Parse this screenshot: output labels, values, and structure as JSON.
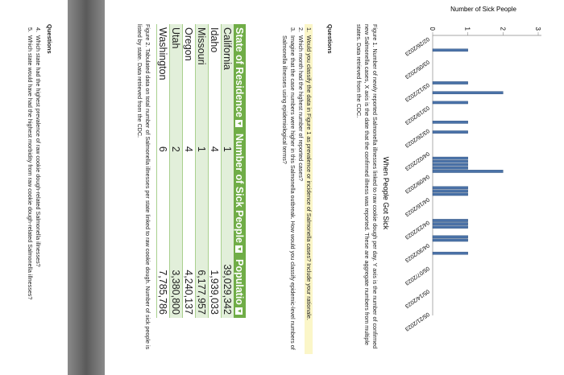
{
  "figure1": {
    "chart_data": {
      "type": "bar",
      "title": "When People Got Sick",
      "y_label": "Number of Sick People",
      "x": [
        "03/02/2023",
        "03/12/2023",
        "03/15/2023",
        "03/18/2023",
        "03/24/2023",
        "03/27/2023",
        "04/04/2023",
        "04/05/2023",
        "04/06/2023",
        "04/07/2023",
        "04/08/2023",
        "04/13/2023",
        "04/14/2023",
        "04/15/2023",
        "04/23/2023",
        "04/24/2023",
        "04/25/2023",
        "04/28/2023",
        "04/29/2023",
        "05/03/2023"
      ],
      "values": [
        1,
        1,
        2,
        1,
        1,
        1,
        1,
        1,
        1,
        1,
        2,
        1,
        1,
        1,
        1,
        1,
        1,
        1,
        1,
        1
      ],
      "color": "#4a72a8",
      "ylim": [
        0,
        3
      ],
      "yticks": [
        0,
        1,
        2,
        3
      ],
      "xticks": [
        "02/26/2023",
        "03/05/2023",
        "03/12/2023",
        "03/19/2023",
        "03/26/2023",
        "04/02/2023",
        "04/09/2023",
        "04/16/2023",
        "04/23/2023",
        "04/30/2023",
        "05/07/2023",
        "05/14/2023",
        "05/21/2023"
      ]
    },
    "caption": "Figure 1. Number of newly reported Salmonella illnesses linked to raw cookie dough per day. Y axis is the number of confirmed new Salmonella cases, X axis is the date that the confirmed illness was reported. These are aggregate numbers from multiple states. Data retrieved from the CDC."
  },
  "questions1": {
    "heading": "Questions",
    "items": [
      {
        "number": "1.",
        "text": "Would you classify the data in Figure 1 as prevalence or incidence of Salmonella cases? Include your rationale."
      },
      {
        "number": "2.",
        "text": "Which month had the highest number of reported cases?"
      },
      {
        "number": "3.",
        "text": "Imagine that the case numbers were higher in this Salmonella outbreak. How would you classify epidemic-level numbers of Salmonella illnesses using epidemiological terms?"
      }
    ]
  },
  "table": {
    "headers": [
      "State of Residence",
      "Number of Sick People",
      "Populatio"
    ],
    "rows": [
      [
        "California",
        "1",
        "39,029,342"
      ],
      [
        "Idaho",
        "4",
        "1,939,033"
      ],
      [
        "Missouri",
        "1",
        "6,177,957"
      ],
      [
        "Oregon",
        "4",
        "4,240,137"
      ],
      [
        "Utah",
        "2",
        "3,380,800"
      ],
      [
        "Washington",
        "6",
        "7,785,786"
      ]
    ]
  },
  "figure2_caption": "Figure 2. Tabulated data on total number of Salmonella illnesses per state linked to raw cookie dough. Number of sick people is listed by state. Data retrieved from the CDC.",
  "questions2": {
    "heading": "Questions",
    "items": [
      {
        "number": "4.",
        "text": "Which state had the highest prevalence of raw cookie dough-related Salmonella illnesses?"
      },
      {
        "number": "5.",
        "text": "Which state would have had the highest morbidity from raw cookie dough-related Salmonella illnesses?"
      }
    ]
  }
}
